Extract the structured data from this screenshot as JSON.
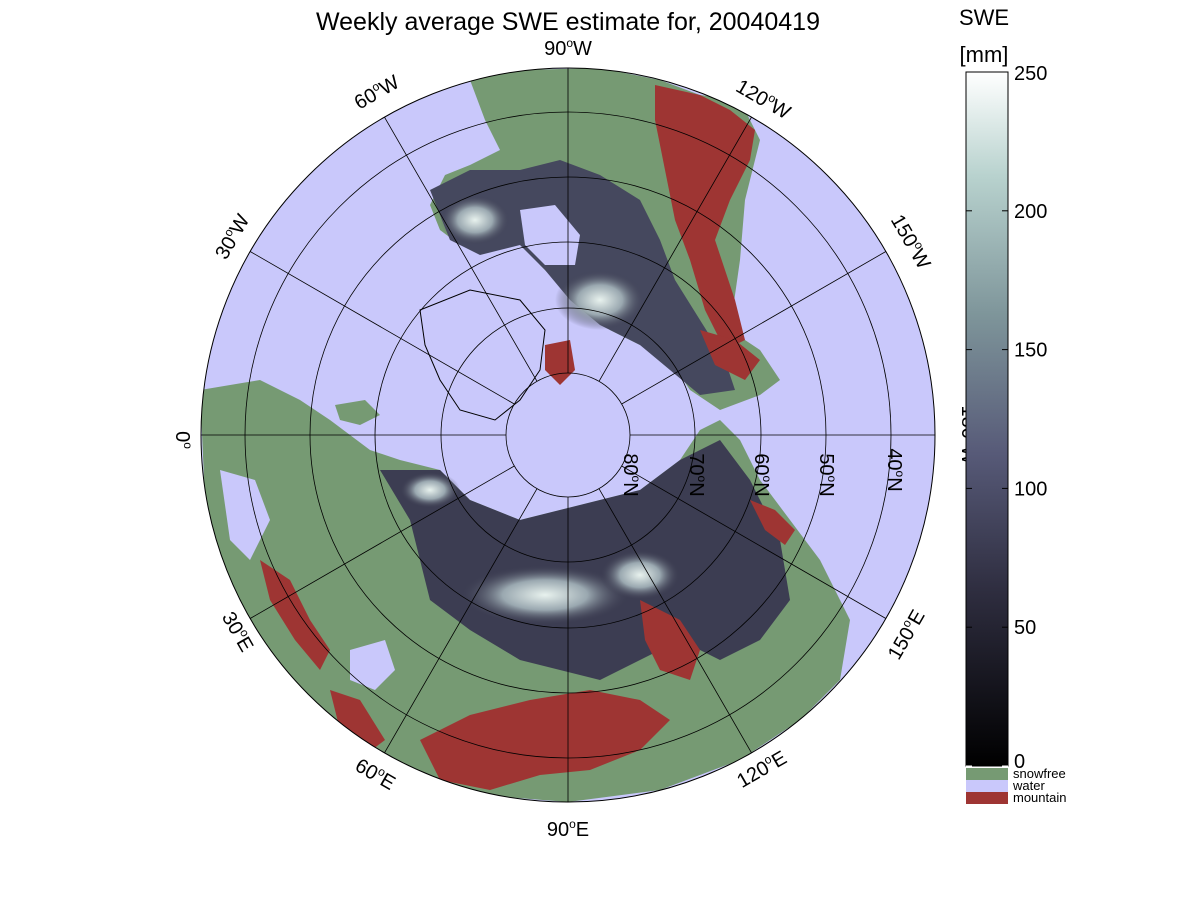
{
  "title": "Weekly average SWE estimate for, 20040419",
  "colorbar": {
    "label_line1": "SWE",
    "label_line2": "[mm]",
    "ticks": [
      {
        "value": 0,
        "label": "0"
      },
      {
        "value": 50,
        "label": "50"
      },
      {
        "value": 100,
        "label": "100"
      },
      {
        "value": 150,
        "label": "150"
      },
      {
        "value": 200,
        "label": "200"
      },
      {
        "value": 250,
        "label": "250"
      }
    ],
    "range": [
      0,
      250
    ]
  },
  "legend": [
    {
      "label": "snowfree",
      "color": "#769a73"
    },
    {
      "label": "water",
      "color": "#c9c8fb"
    },
    {
      "label": "mountain",
      "color": "#9e3533"
    }
  ],
  "map": {
    "projection": "north polar stereographic",
    "colors": {
      "water": "#c9c8fb",
      "land": "#769a73",
      "mountain": "#9e3533",
      "grid": "#000000"
    },
    "longitude_labels": [
      {
        "lon": "90W",
        "text": "90",
        "suffix": "W"
      },
      {
        "lon": "120W",
        "text": "120",
        "suffix": "W"
      },
      {
        "lon": "150W",
        "text": "150",
        "suffix": "W"
      },
      {
        "lon": "180W",
        "text": "180",
        "suffix": "W"
      },
      {
        "lon": "150E",
        "text": "150",
        "suffix": "E"
      },
      {
        "lon": "120E",
        "text": "120",
        "suffix": "E"
      },
      {
        "lon": "90E",
        "text": "90",
        "suffix": "E"
      },
      {
        "lon": "60E",
        "text": "60",
        "suffix": "E"
      },
      {
        "lon": "30E",
        "text": "30",
        "suffix": "E"
      },
      {
        "lon": "0",
        "text": "0",
        "suffix": ""
      },
      {
        "lon": "30W",
        "text": "30",
        "suffix": "W"
      },
      {
        "lon": "60W",
        "text": "60",
        "suffix": "W"
      }
    ],
    "latitude_labels": [
      {
        "lat": "80N",
        "text": "80",
        "suffix": "N"
      },
      {
        "lat": "70N",
        "text": "70",
        "suffix": "N"
      },
      {
        "lat": "60N",
        "text": "60",
        "suffix": "N"
      },
      {
        "lat": "50N",
        "text": "50",
        "suffix": "N"
      },
      {
        "lat": "40N",
        "text": "40",
        "suffix": "N"
      }
    ]
  }
}
